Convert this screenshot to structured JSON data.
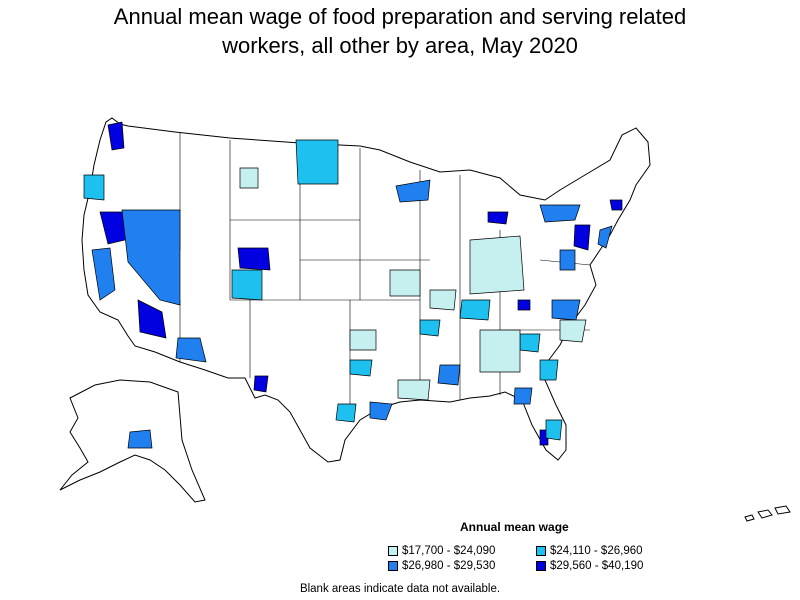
{
  "title_line1": "Annual mean wage of food preparation and serving related",
  "title_line2": "workers, all other by area, May 2020",
  "legend": {
    "title": "Annual mean wage",
    "items": [
      {
        "label": "$17,700 - $24,090",
        "color": "#c6f0f0"
      },
      {
        "label": "$24,110 - $26,960",
        "color": "#1ec0f0"
      },
      {
        "label": "$26,980 - $29,530",
        "color": "#2080f0"
      },
      {
        "label": "$29,560 - $40,190",
        "color": "#0000e0"
      }
    ]
  },
  "note": "Blank areas indicate data not available.",
  "colors": {
    "blank": "#ffffff",
    "border": "#000000"
  }
}
